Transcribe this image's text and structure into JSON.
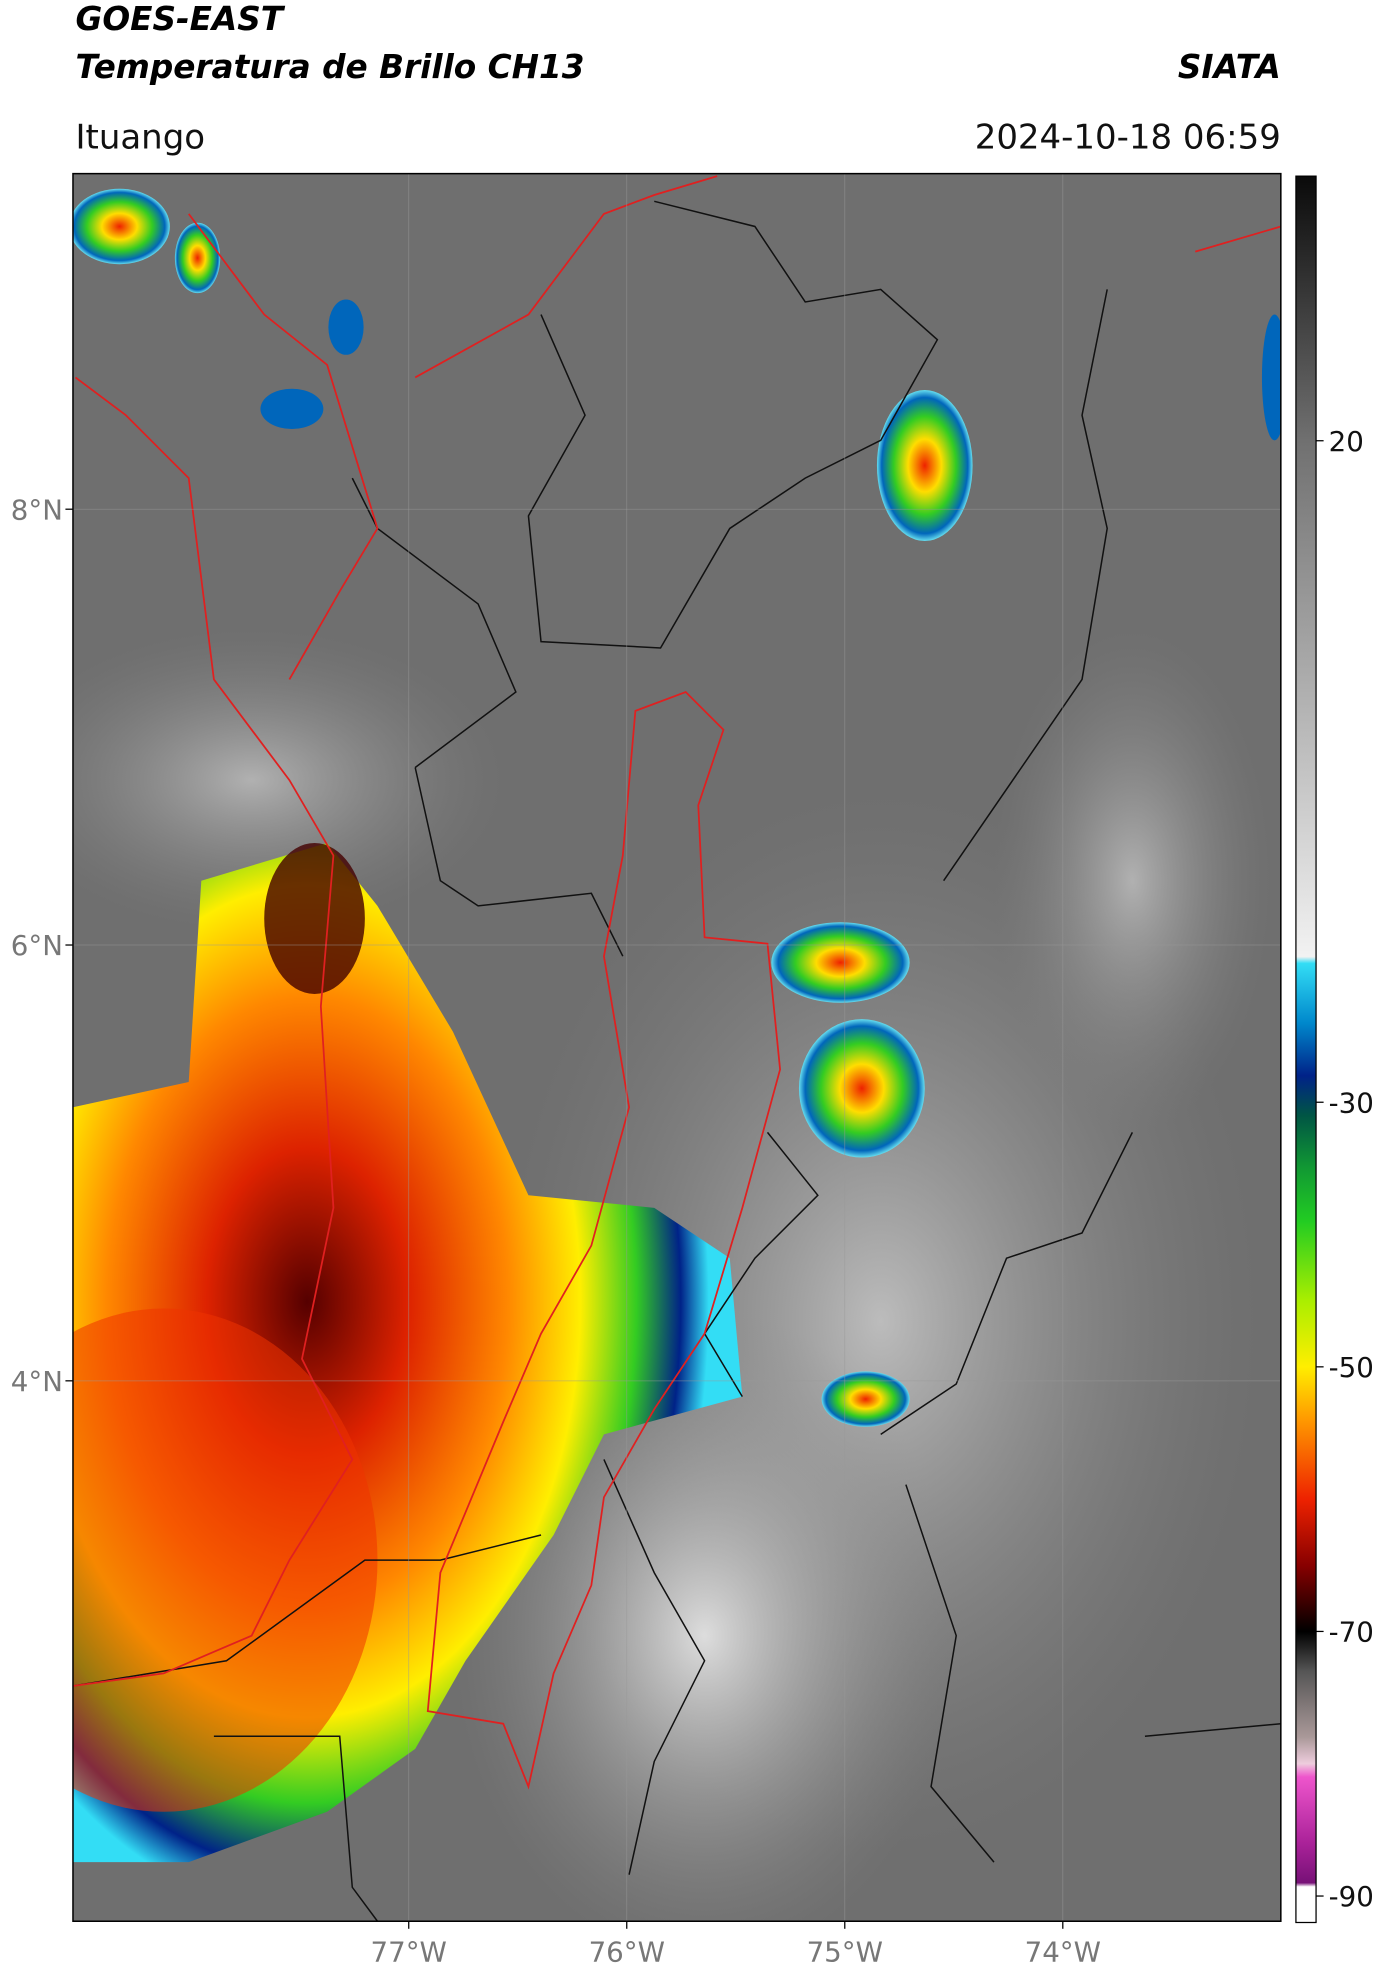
{
  "header": {
    "title": "GOES-EAST",
    "subtitle": "Temperatura de Brillo CH13",
    "source": "SIATA",
    "location": "Ituango",
    "timestamp": "2024-10-18 06:59"
  },
  "map": {
    "latlim": [
      1.52,
      9.54
    ],
    "lonlim": [
      -78.54,
      -73.0
    ],
    "latticks": [
      {
        "value": 8,
        "label": "8°N"
      },
      {
        "value": 6,
        "label": "6°N"
      },
      {
        "value": 4,
        "label": "4°N"
      }
    ],
    "lonticks": [
      {
        "value": -77,
        "label": "77°W"
      },
      {
        "value": -76,
        "label": "76°W"
      },
      {
        "value": -75,
        "label": "75°W"
      },
      {
        "value": -74,
        "label": "74°W"
      }
    ],
    "grid": true
  },
  "colorbar": {
    "lim": [
      -92,
      40
    ],
    "ticks": [
      20,
      -30,
      -50,
      -70,
      -90
    ],
    "colormap": [
      {
        "value": 40,
        "color": "#0a0a0a"
      },
      {
        "value": 20,
        "color": "#707070"
      },
      {
        "value": -19,
        "color": "#f2f2f2"
      },
      {
        "value": -19.5,
        "color": "#33ddf5"
      },
      {
        "value": -24,
        "color": "#0088cc"
      },
      {
        "value": -28,
        "color": "#002288"
      },
      {
        "value": -31,
        "color": "#005544"
      },
      {
        "value": -35,
        "color": "#119933"
      },
      {
        "value": -39,
        "color": "#22cc22"
      },
      {
        "value": -45,
        "color": "#aaee00"
      },
      {
        "value": -50,
        "color": "#ffee00"
      },
      {
        "value": -54,
        "color": "#ff9900"
      },
      {
        "value": -60,
        "color": "#ee2200"
      },
      {
        "value": -65,
        "color": "#880000"
      },
      {
        "value": -70,
        "color": "#000000"
      },
      {
        "value": -73,
        "color": "#555555"
      },
      {
        "value": -78,
        "color": "#aa9999"
      },
      {
        "value": -80,
        "color": "#eeccdd"
      },
      {
        "value": -81,
        "color": "#ee55cc"
      },
      {
        "value": -86,
        "color": "#aa2299"
      },
      {
        "value": -89,
        "color": "#771177"
      },
      {
        "value": -89.3,
        "color": "#ffffff"
      },
      {
        "value": -92,
        "color": "#ffffff"
      }
    ]
  }
}
